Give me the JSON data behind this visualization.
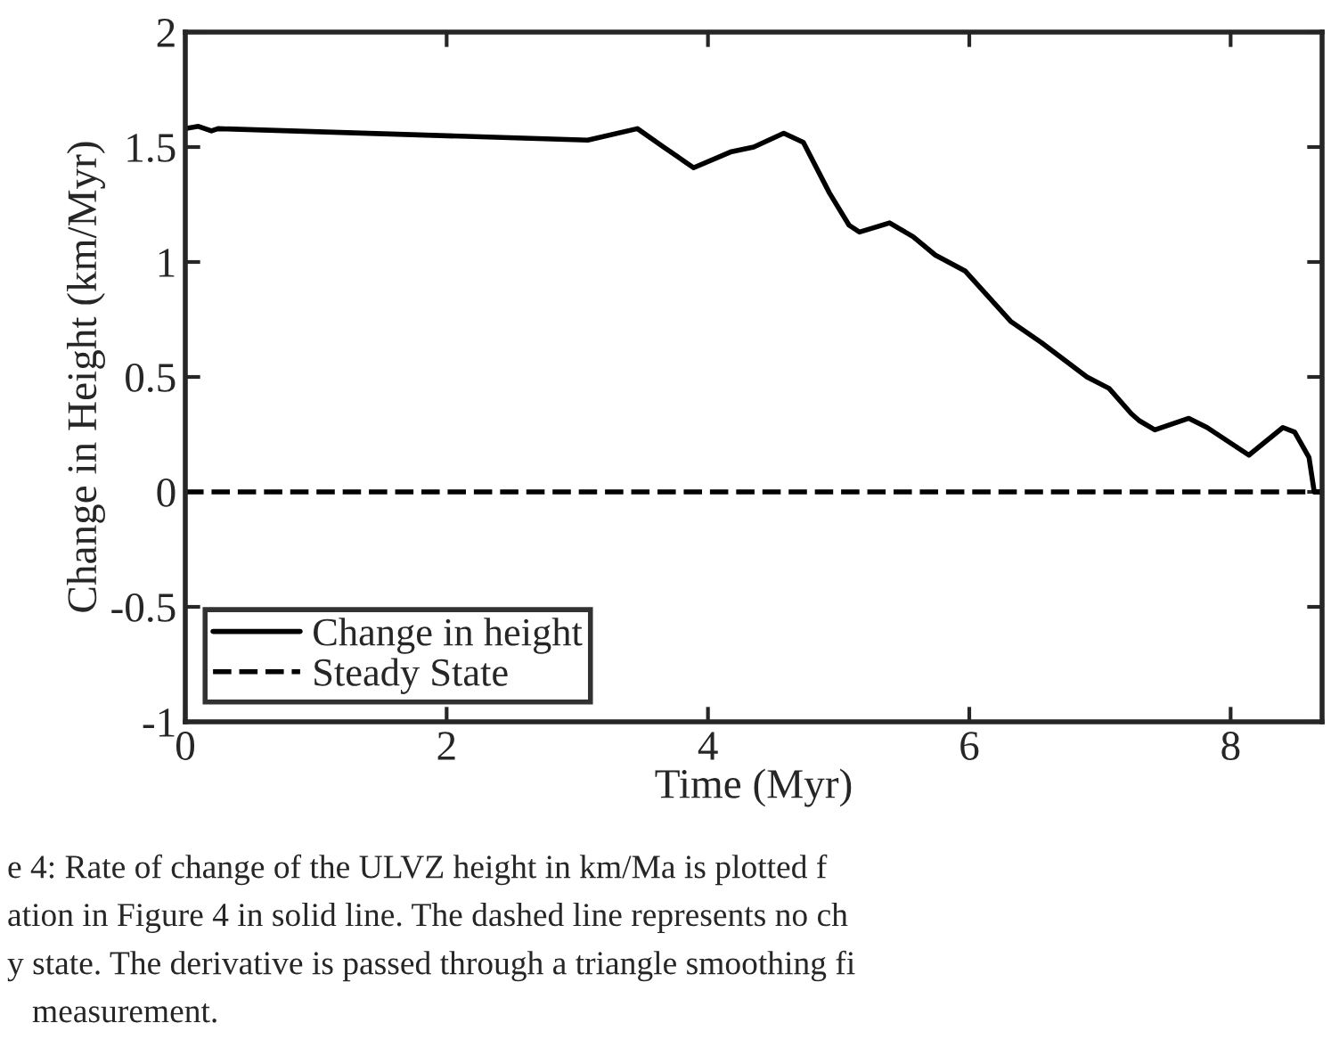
{
  "chart_data": {
    "type": "line",
    "xlabel": "Time (Myr)",
    "ylabel": "Change in Height (km/Myr)",
    "xlim": [
      0,
      8.7
    ],
    "xticks": [
      0,
      2,
      4,
      6,
      8
    ],
    "ylim": [
      -1,
      2
    ],
    "yticks": [
      -1,
      -0.5,
      0,
      0.5,
      1,
      1.5,
      2
    ],
    "legend": "bottom left",
    "grid": false,
    "series": [
      {
        "name": "Change in height",
        "color": "#000000",
        "line_style": "solid",
        "x": [
          0,
          0.1,
          0.2,
          0.25,
          3.08,
          3.46,
          3.66,
          3.89,
          4.18,
          4.35,
          4.58,
          4.73,
          4.93,
          5.08,
          5.16,
          5.39,
          5.57,
          5.74,
          5.97,
          6.32,
          6.55,
          6.9,
          7.07,
          7.24,
          7.3,
          7.42,
          7.68,
          7.82,
          8.14,
          8.4,
          8.49,
          8.6,
          8.64,
          8.7
        ],
        "values": [
          1.58,
          1.59,
          1.57,
          1.58,
          1.53,
          1.58,
          1.5,
          1.41,
          1.48,
          1.5,
          1.56,
          1.52,
          1.3,
          1.16,
          1.13,
          1.17,
          1.11,
          1.03,
          0.96,
          0.74,
          0.65,
          0.5,
          0.45,
          0.34,
          0.31,
          0.27,
          0.32,
          0.28,
          0.16,
          0.28,
          0.26,
          0.15,
          0,
          0
        ]
      },
      {
        "name": "Steady State",
        "color": "#000000",
        "line_style": "dashed",
        "x": [
          0,
          8.7
        ],
        "values": [
          0,
          0
        ]
      }
    ],
    "annotations": [
      "e 4: Rate of change of the ULVZ height in km/Ma is plotted f",
      "ation in Figure 4 in solid line. The dashed line represents no ch",
      "y state. The derivative is passed through a triangle smoothing fi",
      "measurement."
    ]
  }
}
